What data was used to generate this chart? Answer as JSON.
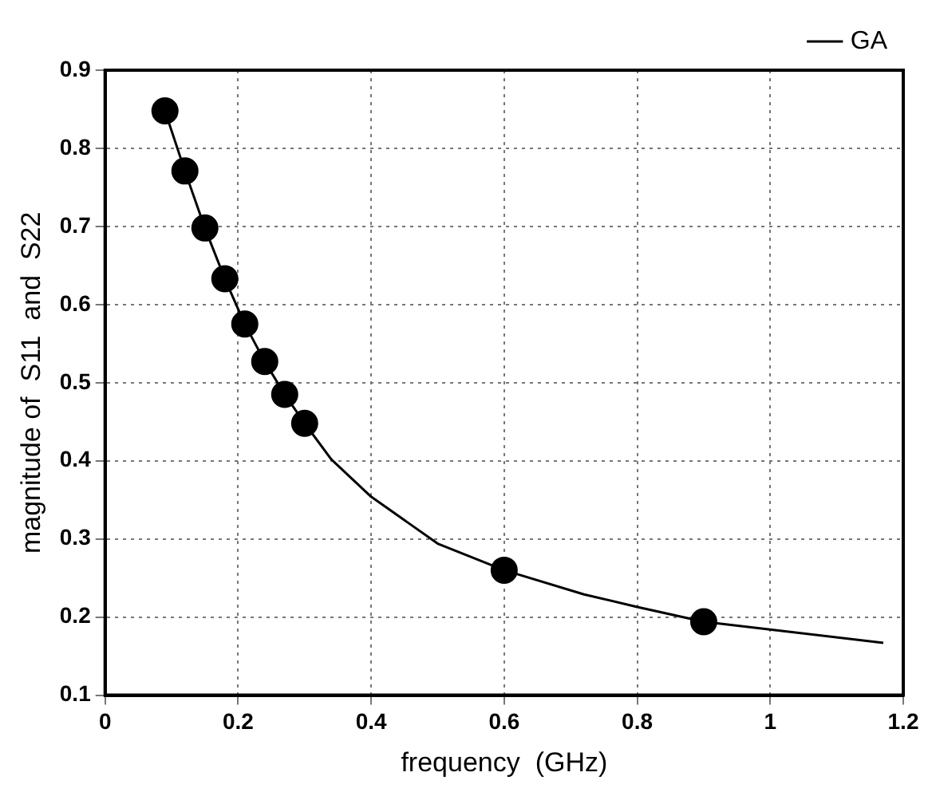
{
  "chart_data": {
    "type": "line",
    "xlabel": "frequency  (GHz)",
    "ylabel": "magnitude of  S11  and  S22",
    "xlim": [
      0,
      1.2
    ],
    "xticks": [
      0,
      0.2,
      0.4,
      0.6,
      0.8,
      1,
      1.2
    ],
    "ylim": [
      0.1,
      0.9
    ],
    "yticks": [
      0.1,
      0.2,
      0.3,
      0.4,
      0.5,
      0.6,
      0.7,
      0.8,
      0.9
    ],
    "grid": true,
    "legend": "top right",
    "series": [
      {
        "name": "GA",
        "color": "#000000",
        "marker": "none",
        "line_style": "solid",
        "x": [
          0.09,
          0.12,
          0.15,
          0.18,
          0.21,
          0.24,
          0.27,
          0.3,
          0.34,
          0.4,
          0.5,
          0.6,
          0.72,
          0.8,
          0.9,
          1.02,
          1.17
        ],
        "values": [
          0.848,
          0.771,
          0.698,
          0.633,
          0.575,
          0.527,
          0.485,
          0.448,
          0.402,
          0.354,
          0.294,
          0.26,
          0.229,
          0.213,
          0.194,
          0.182,
          0.167
        ]
      },
      {
        "type": "scatter",
        "color": "#000000",
        "marker": "circle",
        "x": [
          0.09,
          0.12,
          0.15,
          0.18,
          0.21,
          0.24,
          0.27,
          0.3,
          0.6,
          0.9
        ],
        "values": [
          0.848,
          0.771,
          0.698,
          0.633,
          0.575,
          0.527,
          0.485,
          0.448,
          0.26,
          0.194
        ]
      }
    ]
  }
}
